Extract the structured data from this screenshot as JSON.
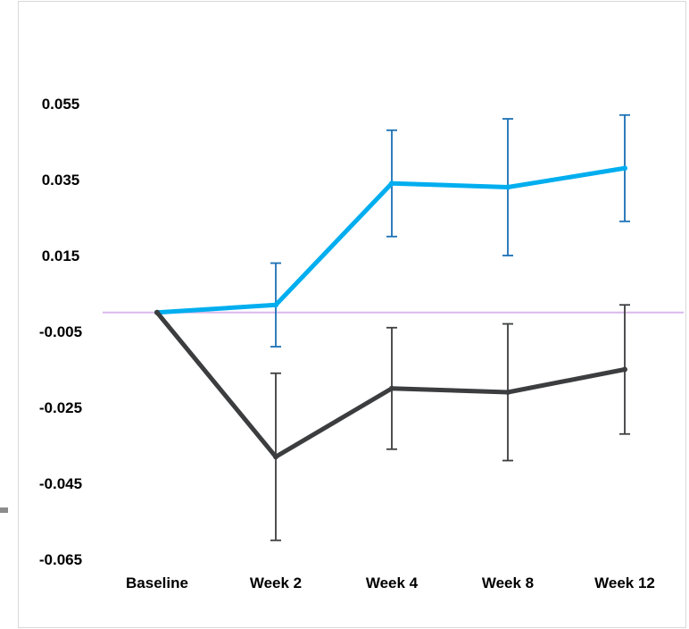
{
  "chart_data": {
    "type": "line",
    "title": "",
    "xlabel": "",
    "ylabel": "",
    "categories": [
      "Baseline",
      "Week 2",
      "Week 4",
      "Week 8",
      "Week 12"
    ],
    "y_ticks": [
      "0.055",
      "0.035",
      "0.015",
      "-0.005",
      "-0.025",
      "-0.045",
      "-0.065"
    ],
    "ylim": [
      -0.065,
      0.055
    ],
    "reference_line": 0,
    "grid": false,
    "series": [
      {
        "color": "#00aeef",
        "error_bar_color": "#1a6fb5",
        "values": [
          0.0,
          0.002,
          0.034,
          0.033,
          0.038
        ],
        "error_low": [
          null,
          -0.009,
          0.02,
          0.015,
          0.024
        ],
        "error_high": [
          null,
          0.013,
          0.048,
          0.051,
          0.052
        ]
      },
      {
        "color": "#3c3d3f",
        "error_bar_color": "#3c3d3f",
        "values": [
          0.0,
          -0.038,
          -0.02,
          -0.021,
          -0.015
        ],
        "error_low": [
          null,
          -0.06,
          -0.036,
          -0.039,
          -0.032
        ],
        "error_high": [
          null,
          -0.016,
          -0.004,
          -0.003,
          0.002
        ]
      }
    ],
    "colors": {
      "reference_line": "#d9b8ec"
    }
  }
}
